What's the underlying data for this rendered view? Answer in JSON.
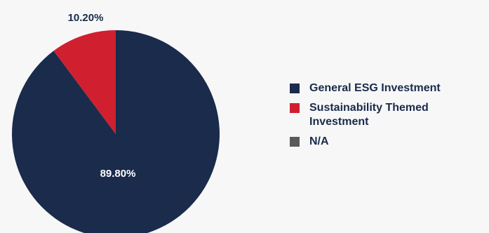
{
  "chart_data": {
    "type": "pie",
    "slices": [
      {
        "label": "General ESG Investment",
        "value": 89.8,
        "display": "89.80%",
        "color": "#1a2b4b"
      },
      {
        "label": "Sustainability Themed Investment",
        "value": 10.2,
        "display": "10.20%",
        "color": "#d0202f"
      },
      {
        "label": "N/A",
        "value": 0,
        "display": "",
        "color": "#5a5a5a"
      }
    ],
    "legend_position": "right",
    "title": ""
  },
  "colors": {
    "background": "#f7f7f8",
    "inside_label": "#ffffff",
    "outside_label": "#1a2b4a"
  }
}
